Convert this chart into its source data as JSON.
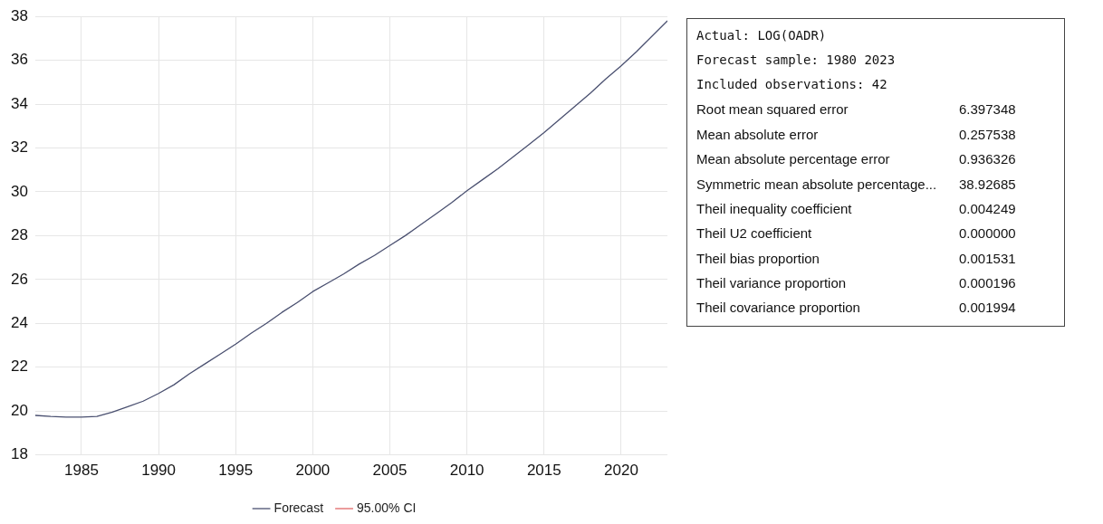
{
  "chart_data": {
    "type": "line",
    "x": [
      1982,
      1983,
      1984,
      1985,
      1986,
      1987,
      1988,
      1989,
      1990,
      1991,
      1992,
      1993,
      1994,
      1995,
      1996,
      1997,
      1998,
      1999,
      2000,
      2001,
      2002,
      2003,
      2004,
      2005,
      2006,
      2007,
      2008,
      2009,
      2010,
      2011,
      2012,
      2013,
      2014,
      2015,
      2016,
      2017,
      2018,
      2019,
      2020,
      2021,
      2022,
      2023
    ],
    "series": [
      {
        "name": "Forecast",
        "color": "#4a5070",
        "line_style": "solid",
        "values": [
          19.8,
          19.75,
          19.72,
          19.72,
          19.75,
          19.95,
          20.2,
          20.45,
          20.8,
          21.2,
          21.7,
          22.15,
          22.6,
          23.05,
          23.55,
          24.0,
          24.5,
          24.95,
          25.45,
          25.85,
          26.25,
          26.7,
          27.1,
          27.55,
          28.0,
          28.5,
          29.0,
          29.5,
          30.05,
          30.55,
          31.05,
          31.6,
          32.15,
          32.7,
          33.3,
          33.9,
          34.5,
          35.15,
          35.75,
          36.4,
          37.1,
          37.8
        ]
      },
      {
        "name": "95.00% CI",
        "color": "#e06666",
        "line_style": "dashed",
        "values": [
          null,
          null,
          null,
          null,
          null,
          null,
          null,
          null,
          null,
          null,
          null,
          null,
          null,
          null,
          null,
          null,
          null,
          null,
          null,
          null,
          null,
          null,
          null,
          null,
          null,
          null,
          null,
          null,
          null,
          null,
          null,
          null,
          null,
          null,
          null,
          null,
          null,
          null,
          null,
          null,
          null,
          null
        ]
      }
    ],
    "xlim": [
      1982,
      2023
    ],
    "xticks": [
      1985,
      1990,
      1995,
      2000,
      2005,
      2010,
      2015,
      2020
    ],
    "ylim": [
      18,
      38
    ],
    "yticks": [
      18,
      20,
      22,
      24,
      26,
      28,
      30,
      32,
      34,
      36,
      38
    ],
    "grid": true,
    "legend": "bottom",
    "marker": "none",
    "annotations": [
      "Actual: LOG(OADR)",
      "Forecast sample: 1980 2023",
      "Included observations: 42",
      "Root mean squared error",
      "6.397348",
      "Mean absolute error",
      "0.257538",
      "Mean absolute percentage error",
      "0.936326",
      "Symmetric mean absolute percentage...",
      "38.92685",
      "Theil inequality coefficient",
      "0.004249",
      "Theil U2 coefficient",
      "0.000000",
      "Theil bias proportion",
      "0.001531",
      "Theil variance proportion",
      "0.000196",
      "Theil covariance proportion",
      "0.001994"
    ]
  }
}
